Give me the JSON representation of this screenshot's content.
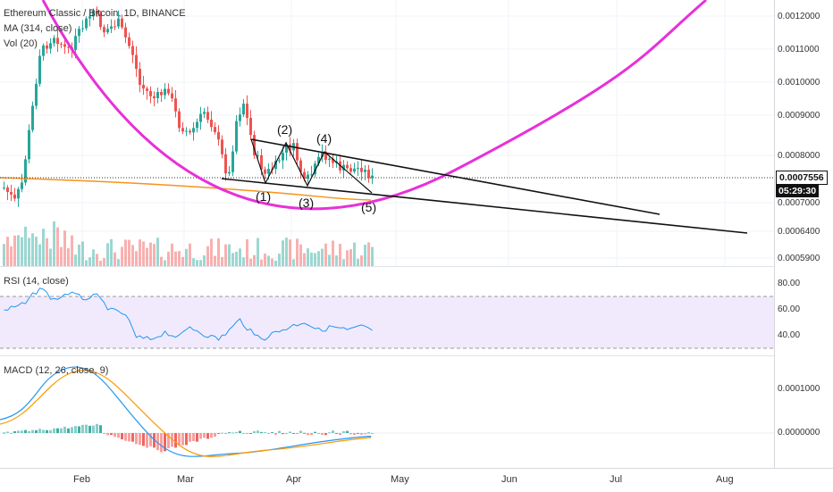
{
  "legend": {
    "symbol": "Ethereum Classic / Bitcoin, 1D, BINANCE",
    "ma": "MA (314, close)",
    "vol": "Vol (20)",
    "rsi": "RSI (14, close)",
    "macd": "MACD (12, 26, close, 9)"
  },
  "price_axis": [
    "0.0012000",
    "0.0011000",
    "0.0010000",
    "0.0009000",
    "0.0008000",
    "0.0007000",
    "0.0006400",
    "0.0005900"
  ],
  "price_badge": "0.0007556",
  "countdown_badge": "05:29:30",
  "rsi_axis": [
    "80.00",
    "60.00",
    "40.00"
  ],
  "macd_axis": [
    "0.0001000",
    "0.0000000"
  ],
  "time_axis": [
    "Feb",
    "Mar",
    "Apr",
    "May",
    "Jun",
    "Jul",
    "Aug"
  ],
  "wave_labels": [
    "(1)",
    "(2)",
    "(3)",
    "(4)",
    "(5)"
  ],
  "colors": {
    "up": "#26a69a",
    "down": "#ef5350",
    "ma": "#f7931a",
    "arc": "#e830d8",
    "rsi": "#2196f3",
    "rsi_band": "#e8dcfb",
    "macd": "#2196f3",
    "signal": "#ff9800"
  }
}
